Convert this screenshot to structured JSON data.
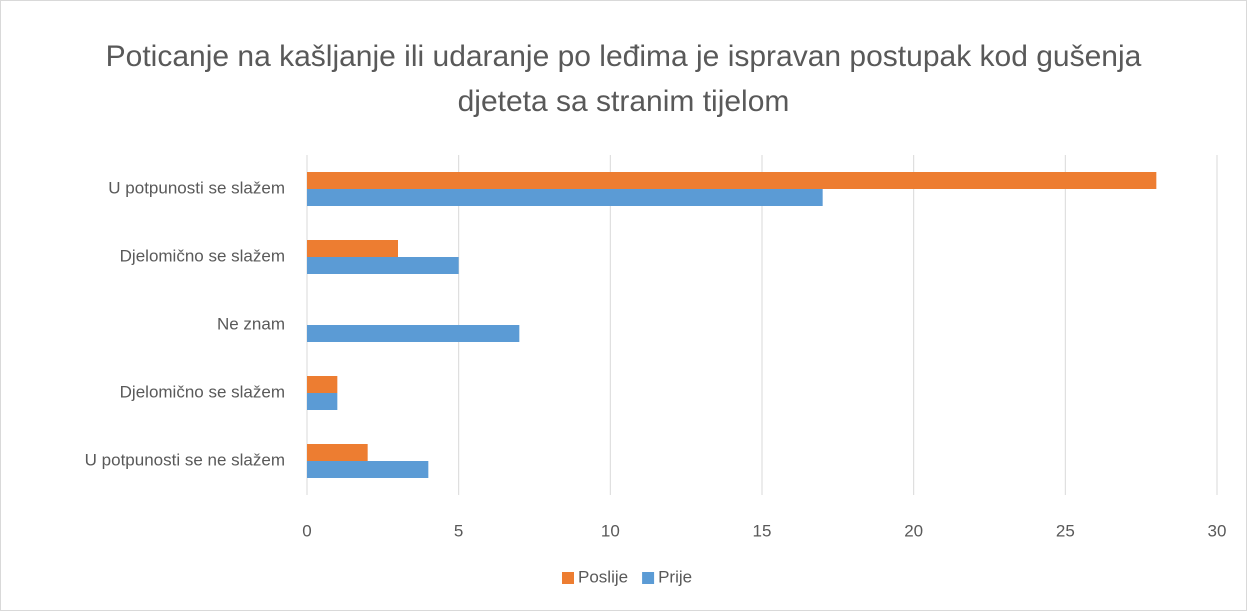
{
  "chart_data": {
    "type": "hbar",
    "title": "Poticanje na kašljanje ili udaranje po leđima je ispravan postupak kod gušenja djeteta sa stranim tijelom",
    "categories": [
      "U potpunosti se slažem",
      "Djelomično se slažem",
      "Ne znam",
      "Djelomično se slažem",
      "U potpunosti se ne slažem"
    ],
    "series": [
      {
        "name": "Poslije",
        "color": "#ed7d31",
        "values": [
          28,
          3,
          0,
          1,
          2
        ]
      },
      {
        "name": "Prije",
        "color": "#5b9bd5",
        "values": [
          17,
          5,
          7,
          1,
          4
        ]
      }
    ],
    "xlim": [
      0,
      30
    ],
    "xticks": [
      0,
      5,
      10,
      15,
      20,
      25,
      30
    ],
    "grid": true,
    "legend": "bottom"
  }
}
